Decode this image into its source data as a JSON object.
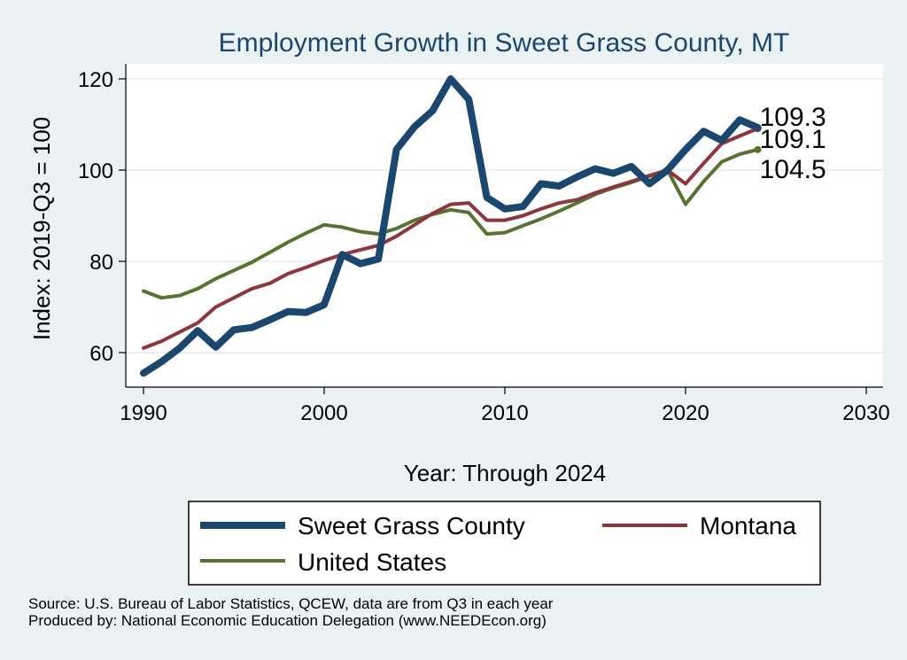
{
  "chart_data": {
    "type": "line",
    "title": "Employment Growth in Sweet Grass County, MT",
    "xlabel": "Year: Through 2024",
    "ylabel": "Index: 2019-Q3 = 100",
    "xlim": [
      1990,
      2030
    ],
    "ylim": [
      52,
      123
    ],
    "xticks": [
      1990,
      2000,
      2010,
      2020,
      2030
    ],
    "yticks": [
      60,
      80,
      100,
      120
    ],
    "grid": true,
    "x": [
      1990,
      1991,
      1992,
      1993,
      1994,
      1995,
      1996,
      1997,
      1998,
      1999,
      2000,
      2001,
      2002,
      2003,
      2004,
      2005,
      2006,
      2007,
      2008,
      2009,
      2010,
      2011,
      2012,
      2013,
      2014,
      2015,
      2016,
      2017,
      2018,
      2019,
      2020,
      2021,
      2022,
      2023,
      2024
    ],
    "series": [
      {
        "name": "Sweet Grass  County",
        "color": "#1a476f",
        "width": "thick",
        "values": [
          55.5,
          58.0,
          61.0,
          64.8,
          61.2,
          65.0,
          65.5,
          67.2,
          69.0,
          68.8,
          70.5,
          81.5,
          79.5,
          80.5,
          104.5,
          109.5,
          113.0,
          120.0,
          115.5,
          94.0,
          91.5,
          92.0,
          97.0,
          96.5,
          98.5,
          100.3,
          99.3,
          100.8,
          97.0,
          100.0,
          104.5,
          108.5,
          106.5,
          111.0,
          109.3
        ],
        "end_label": "109.3"
      },
      {
        "name": "Montana",
        "color": "#90353b",
        "width": "normal",
        "values": [
          61.0,
          62.5,
          64.5,
          66.5,
          70.0,
          72.0,
          74.0,
          75.2,
          77.3,
          78.7,
          80.2,
          81.5,
          82.5,
          83.5,
          85.5,
          88.0,
          90.5,
          92.5,
          92.8,
          89.0,
          89.0,
          90.0,
          91.5,
          92.8,
          93.5,
          95.0,
          96.3,
          97.5,
          98.8,
          100.0,
          97.0,
          101.5,
          105.8,
          107.5,
          109.1
        ],
        "end_label": "109.1"
      },
      {
        "name": "United States",
        "color": "#55752f",
        "width": "normal",
        "values": [
          73.5,
          72.0,
          72.5,
          74.0,
          76.2,
          78.0,
          79.8,
          82.0,
          84.2,
          86.2,
          88.0,
          87.5,
          86.5,
          86.0,
          87.2,
          89.0,
          90.3,
          91.3,
          90.7,
          86.0,
          86.3,
          87.8,
          89.3,
          91.0,
          92.8,
          94.7,
          96.1,
          97.3,
          98.7,
          100.0,
          92.5,
          97.5,
          101.8,
          103.5,
          104.5
        ],
        "end_label": "104.5"
      }
    ],
    "legend": {
      "placement": "bottom",
      "items": [
        "Sweet Grass  County",
        "Montana",
        "United States"
      ]
    }
  },
  "footer": {
    "source": "Source: U.S. Bureau of Labor Statistics, QCEW, data are from Q3 in each year",
    "produced": "Produced by: National Economic Education Delegation (www.NEEDEcon.org)"
  }
}
